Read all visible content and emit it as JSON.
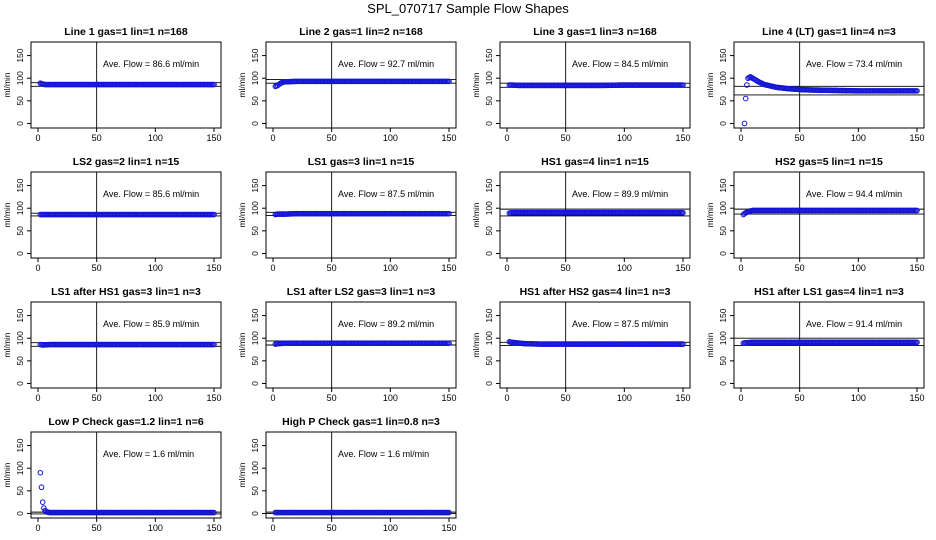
{
  "figure": {
    "title": "SPL_070717  Sample Flow Shapes"
  },
  "chart_data": [
    {
      "type": "scatter",
      "title": "Line 1 gas=1 lin=1 n=168",
      "ylabel": "ml/min",
      "xlim": [
        0,
        150
      ],
      "ylim": [
        -10,
        180
      ],
      "xticks": [
        "0",
        "50",
        "100",
        "150"
      ],
      "yticks": [
        "0",
        "50",
        "100",
        "150"
      ],
      "annotation": "Ave. Flow =  86.6  ml/min",
      "hlines": [
        90,
        82
      ],
      "vline": 50,
      "points": [
        [
          2,
          89
        ],
        [
          4,
          87
        ],
        [
          6,
          86
        ],
        [
          10,
          86
        ],
        [
          20,
          86
        ],
        [
          40,
          86
        ],
        [
          60,
          86
        ],
        [
          80,
          86
        ],
        [
          100,
          86
        ],
        [
          120,
          86
        ],
        [
          140,
          86
        ],
        [
          150,
          86
        ]
      ]
    },
    {
      "type": "scatter",
      "title": "Line 2 gas=1 lin=2 n=168",
      "ylabel": "ml/min",
      "xlim": [
        0,
        150
      ],
      "ylim": [
        -10,
        180
      ],
      "xticks": [
        "0",
        "50",
        "100",
        "150"
      ],
      "yticks": [
        "0",
        "50",
        "100",
        "150"
      ],
      "annotation": "Ave. Flow =  92.7  ml/min",
      "hlines": [
        97,
        89
      ],
      "vline": 50,
      "points": [
        [
          2,
          82
        ],
        [
          4,
          84
        ],
        [
          6,
          88
        ],
        [
          8,
          91
        ],
        [
          10,
          92
        ],
        [
          20,
          93
        ],
        [
          40,
          93
        ],
        [
          60,
          93
        ],
        [
          80,
          93
        ],
        [
          100,
          93
        ],
        [
          120,
          93
        ],
        [
          140,
          93
        ],
        [
          150,
          93
        ]
      ]
    },
    {
      "type": "scatter",
      "title": "Line 3 gas=1 lin=3 n=168",
      "ylabel": "ml/min",
      "xlim": [
        0,
        150
      ],
      "ylim": [
        -10,
        180
      ],
      "xticks": [
        "0",
        "50",
        "100",
        "150"
      ],
      "yticks": [
        "0",
        "50",
        "100",
        "150"
      ],
      "annotation": "Ave. Flow =  84.5  ml/min",
      "hlines": [
        89,
        80
      ],
      "vline": 50,
      "points": [
        [
          2,
          85
        ],
        [
          4,
          85
        ],
        [
          10,
          84
        ],
        [
          20,
          84
        ],
        [
          40,
          84
        ],
        [
          60,
          84
        ],
        [
          80,
          84
        ],
        [
          100,
          85
        ],
        [
          120,
          85
        ],
        [
          140,
          85
        ],
        [
          150,
          85
        ]
      ]
    },
    {
      "type": "scatter",
      "title": "Line 4 (LT) gas=1 lin=4 n=3",
      "ylabel": "ml/min",
      "xlim": [
        0,
        150
      ],
      "ylim": [
        -10,
        180
      ],
      "xticks": [
        "0",
        "50",
        "100",
        "150"
      ],
      "yticks": [
        "0",
        "50",
        "100",
        "150"
      ],
      "annotation": "Ave. Flow =  73.4  ml/min",
      "hlines": [
        82,
        63
      ],
      "vline": 50,
      "points": [
        [
          3,
          0
        ],
        [
          4,
          55
        ],
        [
          5,
          85
        ],
        [
          6,
          100
        ],
        [
          8,
          103
        ],
        [
          10,
          100
        ],
        [
          15,
          92
        ],
        [
          20,
          86
        ],
        [
          30,
          80
        ],
        [
          40,
          77
        ],
        [
          50,
          75
        ],
        [
          60,
          74
        ],
        [
          80,
          73
        ],
        [
          100,
          72
        ],
        [
          120,
          72
        ],
        [
          140,
          72
        ],
        [
          150,
          72
        ]
      ]
    },
    {
      "type": "scatter",
      "title": "LS2 gas=2 lin=1 n=15",
      "ylabel": "ml/min",
      "xlim": [
        0,
        150
      ],
      "ylim": [
        -10,
        180
      ],
      "xticks": [
        "0",
        "50",
        "100",
        "150"
      ],
      "yticks": [
        "0",
        "50",
        "100",
        "150"
      ],
      "annotation": "Ave. Flow =  85.6  ml/min",
      "hlines": [
        89,
        83
      ],
      "vline": 50,
      "points": [
        [
          2,
          86
        ],
        [
          4,
          86
        ],
        [
          10,
          86
        ],
        [
          20,
          86
        ],
        [
          40,
          86
        ],
        [
          60,
          86
        ],
        [
          80,
          86
        ],
        [
          100,
          86
        ],
        [
          120,
          86
        ],
        [
          140,
          86
        ],
        [
          150,
          86
        ]
      ]
    },
    {
      "type": "scatter",
      "title": "LS1 gas=3 lin=1 n=15",
      "ylabel": "ml/min",
      "xlim": [
        0,
        150
      ],
      "ylim": [
        -10,
        180
      ],
      "xticks": [
        "0",
        "50",
        "100",
        "150"
      ],
      "yticks": [
        "0",
        "50",
        "100",
        "150"
      ],
      "annotation": "Ave. Flow =  87.5  ml/min",
      "hlines": [
        91,
        84
      ],
      "vline": 50,
      "points": [
        [
          2,
          86
        ],
        [
          4,
          87
        ],
        [
          10,
          87
        ],
        [
          20,
          88
        ],
        [
          40,
          88
        ],
        [
          60,
          88
        ],
        [
          80,
          88
        ],
        [
          100,
          88
        ],
        [
          120,
          88
        ],
        [
          140,
          88
        ],
        [
          150,
          88
        ]
      ]
    },
    {
      "type": "scatter",
      "title": "HS1 gas=4 lin=1 n=15",
      "ylabel": "ml/min",
      "xlim": [
        0,
        150
      ],
      "ylim": [
        -10,
        180
      ],
      "xticks": [
        "0",
        "50",
        "100",
        "150"
      ],
      "yticks": [
        "0",
        "50",
        "100",
        "150"
      ],
      "annotation": "Ave. Flow =  89.9  ml/min",
      "hlines": [
        98,
        83
      ],
      "vline": 50,
      "points": [
        [
          2,
          89
        ],
        [
          4,
          90
        ],
        [
          10,
          90
        ],
        [
          20,
          90
        ],
        [
          40,
          90
        ],
        [
          60,
          90
        ],
        [
          80,
          90
        ],
        [
          100,
          90
        ],
        [
          120,
          90
        ],
        [
          140,
          90
        ],
        [
          150,
          90
        ]
      ]
    },
    {
      "type": "scatter",
      "title": "HS2 gas=5 lin=1 n=15",
      "ylabel": "ml/min",
      "xlim": [
        0,
        150
      ],
      "ylim": [
        -10,
        180
      ],
      "xticks": [
        "0",
        "50",
        "100",
        "150"
      ],
      "yticks": [
        "0",
        "50",
        "100",
        "150"
      ],
      "annotation": "Ave. Flow =  94.4  ml/min",
      "hlines": [
        98,
        87
      ],
      "vline": 50,
      "points": [
        [
          2,
          86
        ],
        [
          4,
          90
        ],
        [
          6,
          92
        ],
        [
          8,
          94
        ],
        [
          10,
          95
        ],
        [
          20,
          95
        ],
        [
          40,
          95
        ],
        [
          60,
          95
        ],
        [
          80,
          95
        ],
        [
          100,
          95
        ],
        [
          120,
          95
        ],
        [
          140,
          95
        ],
        [
          150,
          95
        ]
      ]
    },
    {
      "type": "scatter",
      "title": "LS1 after HS1 gas=3 lin=1 n=3",
      "ylabel": "ml/min",
      "xlim": [
        0,
        150
      ],
      "ylim": [
        -10,
        180
      ],
      "xticks": [
        "0",
        "50",
        "100",
        "150"
      ],
      "yticks": [
        "0",
        "50",
        "100",
        "150"
      ],
      "annotation": "Ave. Flow =  85.9  ml/min",
      "hlines": [
        90,
        82
      ],
      "vline": 50,
      "points": [
        [
          2,
          86
        ],
        [
          4,
          85
        ],
        [
          10,
          86
        ],
        [
          20,
          86
        ],
        [
          40,
          86
        ],
        [
          60,
          86
        ],
        [
          80,
          86
        ],
        [
          100,
          86
        ],
        [
          120,
          86
        ],
        [
          140,
          86
        ],
        [
          150,
          86
        ]
      ]
    },
    {
      "type": "scatter",
      "title": "LS1 after LS2 gas=3 lin=1 n=3",
      "ylabel": "ml/min",
      "xlim": [
        0,
        150
      ],
      "ylim": [
        -10,
        180
      ],
      "xticks": [
        "0",
        "50",
        "100",
        "150"
      ],
      "yticks": [
        "0",
        "50",
        "100",
        "150"
      ],
      "annotation": "Ave. Flow =  89.2  ml/min",
      "hlines": [
        94,
        85
      ],
      "vline": 50,
      "points": [
        [
          2,
          87
        ],
        [
          4,
          88
        ],
        [
          10,
          89
        ],
        [
          20,
          89
        ],
        [
          40,
          89
        ],
        [
          60,
          89
        ],
        [
          80,
          89
        ],
        [
          100,
          89
        ],
        [
          120,
          89
        ],
        [
          140,
          89
        ],
        [
          150,
          89
        ]
      ]
    },
    {
      "type": "scatter",
      "title": "HS1 after HS2 gas=4 lin=1 n=3",
      "ylabel": "ml/min",
      "xlim": [
        0,
        150
      ],
      "ylim": [
        -10,
        180
      ],
      "xticks": [
        "0",
        "50",
        "100",
        "150"
      ],
      "yticks": [
        "0",
        "50",
        "100",
        "150"
      ],
      "annotation": "Ave. Flow =  87.5  ml/min",
      "hlines": [
        91,
        84
      ],
      "vline": 50,
      "points": [
        [
          2,
          92
        ],
        [
          4,
          91
        ],
        [
          8,
          90
        ],
        [
          15,
          88
        ],
        [
          30,
          87
        ],
        [
          50,
          87
        ],
        [
          80,
          87
        ],
        [
          100,
          87
        ],
        [
          120,
          87
        ],
        [
          140,
          87
        ],
        [
          150,
          87
        ]
      ]
    },
    {
      "type": "scatter",
      "title": "HS1 after LS1 gas=4 lin=1 n=3",
      "ylabel": "ml/min",
      "xlim": [
        0,
        150
      ],
      "ylim": [
        -10,
        180
      ],
      "xticks": [
        "0",
        "50",
        "100",
        "150"
      ],
      "yticks": [
        "0",
        "50",
        "100",
        "150"
      ],
      "annotation": "Ave. Flow =  91.4  ml/min",
      "hlines": [
        100,
        84
      ],
      "vline": 50,
      "points": [
        [
          2,
          89
        ],
        [
          4,
          90
        ],
        [
          10,
          91
        ],
        [
          20,
          91
        ],
        [
          40,
          91
        ],
        [
          60,
          91
        ],
        [
          80,
          91
        ],
        [
          100,
          91
        ],
        [
          120,
          91
        ],
        [
          140,
          91
        ],
        [
          150,
          91
        ]
      ]
    },
    {
      "type": "scatter",
      "title": "Low P Check gas=1.2 lin=1 n=6",
      "ylabel": "ml/min",
      "xlim": [
        0,
        150
      ],
      "ylim": [
        -10,
        180
      ],
      "xticks": [
        "0",
        "50",
        "100",
        "150"
      ],
      "yticks": [
        "0",
        "50",
        "100",
        "150"
      ],
      "annotation": "Ave. Flow =  1.6  ml/min",
      "hlines": [
        3,
        -1
      ],
      "vline": 50,
      "points": [
        [
          2,
          90
        ],
        [
          3,
          58
        ],
        [
          4,
          25
        ],
        [
          5,
          12
        ],
        [
          6,
          6
        ],
        [
          8,
          3
        ],
        [
          10,
          2
        ],
        [
          20,
          2
        ],
        [
          40,
          2
        ],
        [
          60,
          2
        ],
        [
          80,
          2
        ],
        [
          100,
          2
        ],
        [
          120,
          2
        ],
        [
          140,
          2
        ],
        [
          150,
          2
        ]
      ]
    },
    {
      "type": "scatter",
      "title": "High P Check gas=1 lin=0.8 n=3",
      "ylabel": "ml/min",
      "xlim": [
        0,
        150
      ],
      "ylim": [
        -10,
        180
      ],
      "xticks": [
        "0",
        "50",
        "100",
        "150"
      ],
      "yticks": [
        "0",
        "50",
        "100",
        "150"
      ],
      "annotation": "Ave. Flow =  1.6  ml/min",
      "hlines": [
        3,
        0
      ],
      "vline": 50,
      "points": [
        [
          2,
          2
        ],
        [
          10,
          2
        ],
        [
          20,
          2
        ],
        [
          40,
          2
        ],
        [
          60,
          2
        ],
        [
          80,
          2
        ],
        [
          100,
          2
        ],
        [
          120,
          2
        ],
        [
          140,
          2
        ],
        [
          150,
          2
        ]
      ]
    }
  ]
}
